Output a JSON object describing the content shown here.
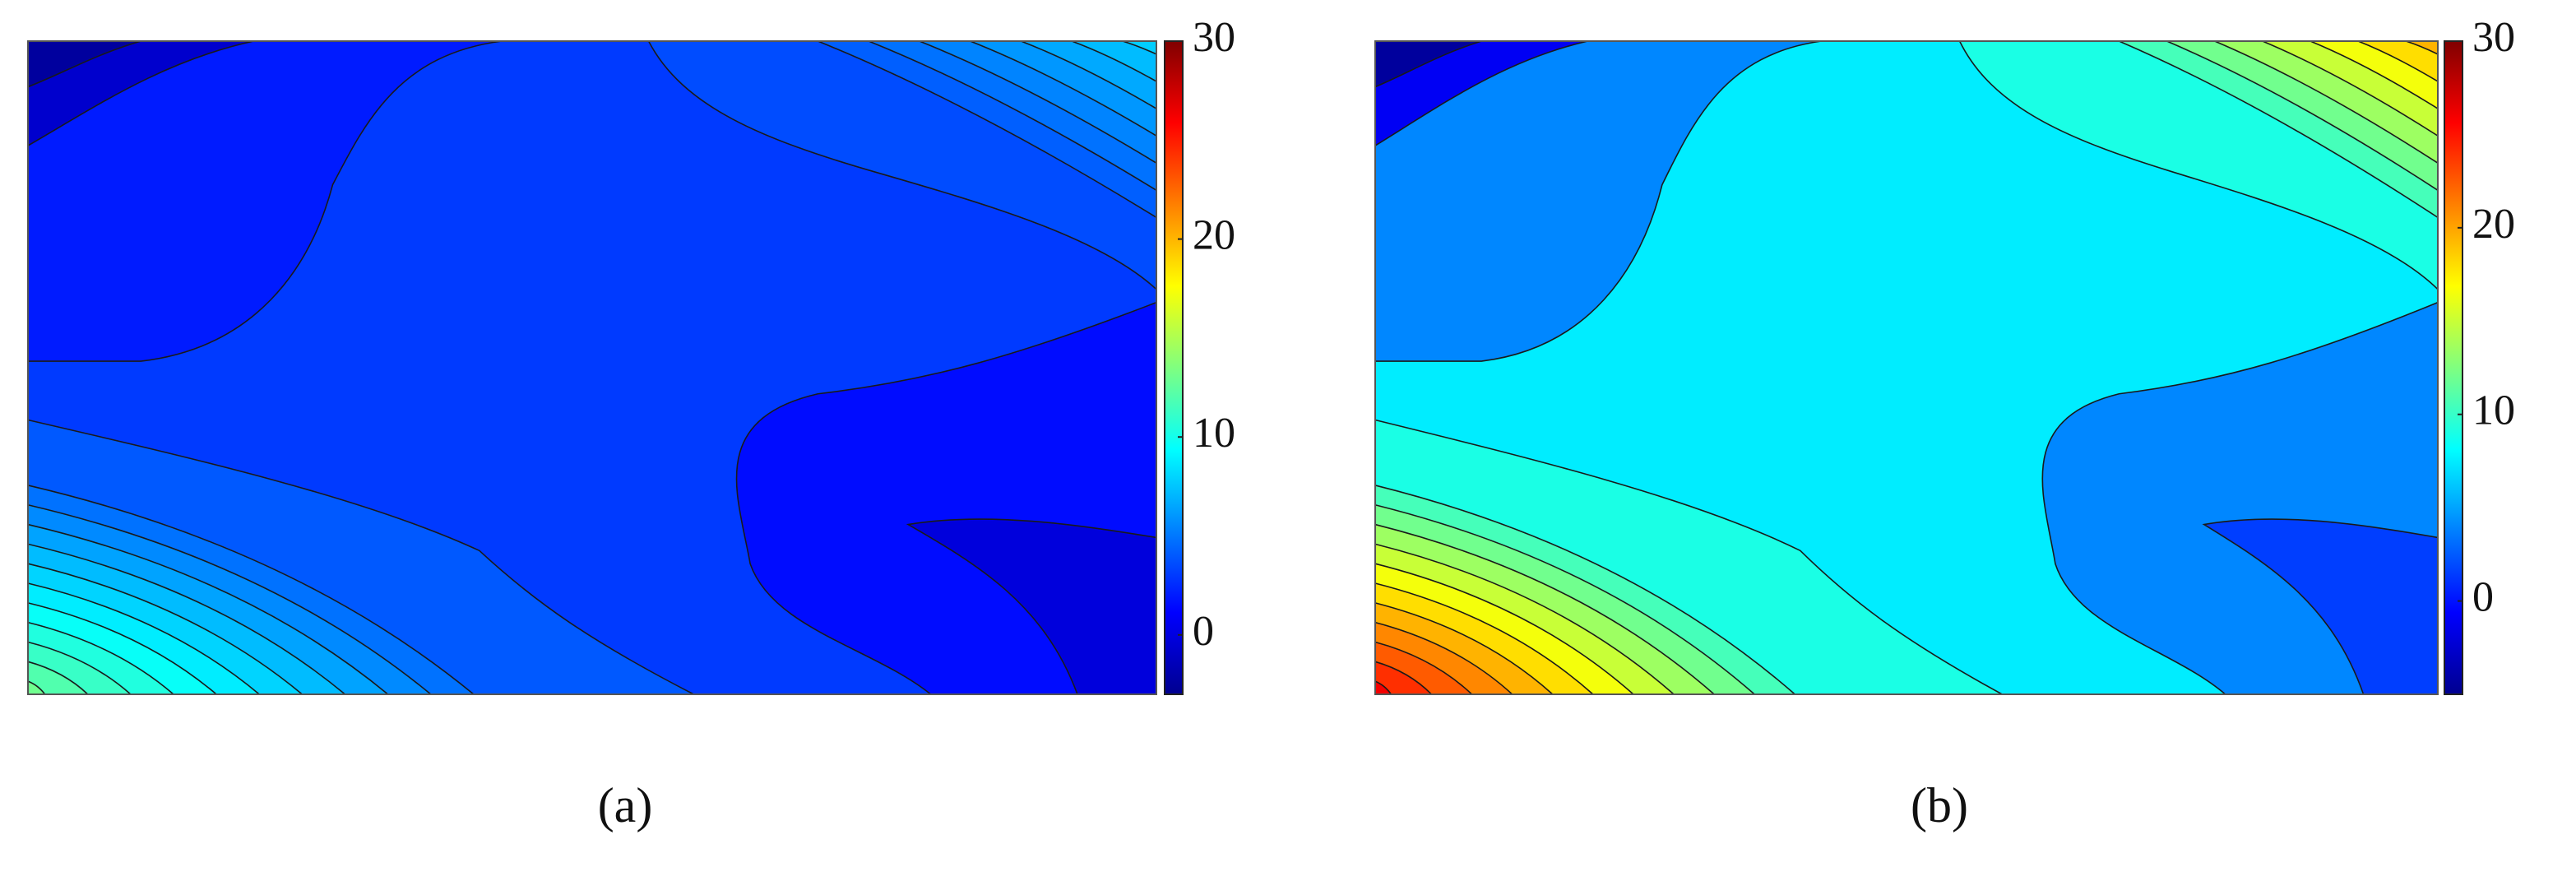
{
  "chart_data": [
    {
      "type": "contour",
      "label": "(a)",
      "colorbar": {
        "lim": [
          -3,
          30
        ],
        "ticks": [
          0,
          10,
          20,
          30
        ]
      },
      "levels": {
        "regions": [
          3,
          2,
          -0.5,
          -2,
          1.5,
          0
        ],
        "lower_left": [
          4,
          4.8,
          5.6,
          6.4,
          7.2,
          8,
          8.8,
          9.6,
          10.4,
          11.2,
          12,
          13
        ],
        "upper_right": [
          3.6,
          4.2,
          4.8,
          5.4,
          6,
          6.6,
          7.2,
          7.8
        ]
      }
    },
    {
      "type": "contour",
      "label": "(b)",
      "colorbar": {
        "lim": [
          -5,
          30
        ],
        "ticks": [
          0,
          10,
          20,
          30
        ]
      },
      "levels": {
        "regions": [
          7.5,
          4,
          -1,
          -4,
          4,
          1.5
        ],
        "lower_left": [
          9,
          10.5,
          12,
          13.5,
          15,
          16.5,
          18,
          19.5,
          21,
          22.5,
          24,
          26
        ],
        "upper_right": [
          9,
          10.5,
          12,
          13.5,
          15,
          16.5,
          18,
          19.5
        ]
      }
    }
  ]
}
